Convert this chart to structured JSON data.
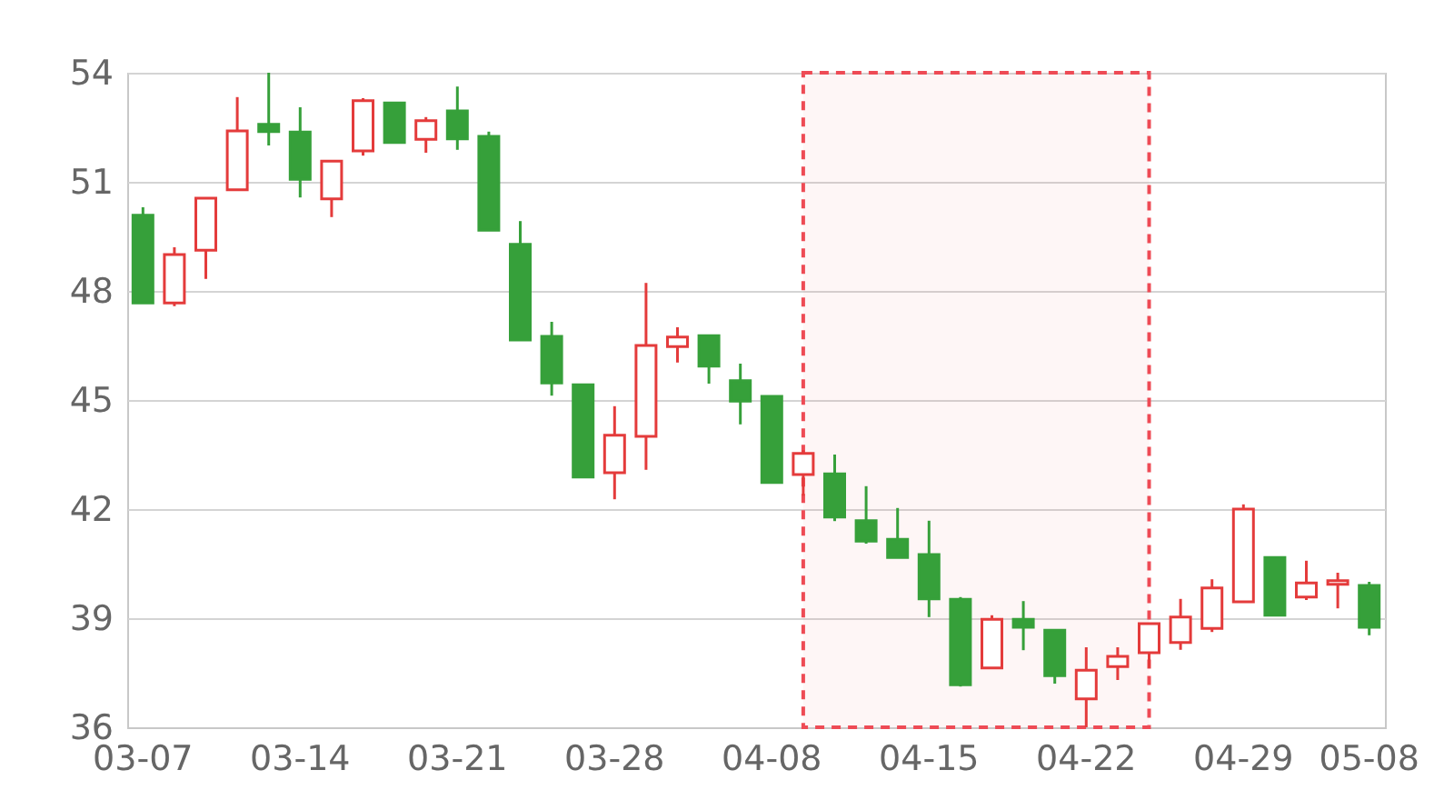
{
  "chart_data": {
    "type": "candlestick",
    "categories": [
      "03-07",
      null,
      null,
      null,
      null,
      "03-14",
      null,
      null,
      null,
      null,
      "03-21",
      null,
      null,
      null,
      null,
      "03-28",
      null,
      null,
      null,
      null,
      "04-08",
      null,
      null,
      null,
      null,
      "04-15",
      null,
      null,
      null,
      null,
      "04-22",
      null,
      null,
      null,
      null,
      "04-29",
      null,
      null,
      null,
      "05-08"
    ],
    "ohlc": [
      [
        50.08,
        50.3,
        47.67,
        47.67
      ],
      [
        47.67,
        49.2,
        47.58,
        49.0
      ],
      [
        49.12,
        50.55,
        48.33,
        50.55
      ],
      [
        50.78,
        53.33,
        50.78,
        52.4
      ],
      [
        52.58,
        54.0,
        52.0,
        52.38
      ],
      [
        52.37,
        53.05,
        50.57,
        51.07
      ],
      [
        50.53,
        51.57,
        50.03,
        51.57
      ],
      [
        51.85,
        53.3,
        51.72,
        53.23
      ],
      [
        53.17,
        53.17,
        52.05,
        52.08
      ],
      [
        52.17,
        52.78,
        51.8,
        52.68
      ],
      [
        52.95,
        53.62,
        51.88,
        52.18
      ],
      [
        52.25,
        52.38,
        49.67,
        49.67
      ],
      [
        49.28,
        49.92,
        46.65,
        46.65
      ],
      [
        46.75,
        47.15,
        45.12,
        45.47
      ],
      [
        45.42,
        45.42,
        42.88,
        42.88
      ],
      [
        43.0,
        44.83,
        42.27,
        44.03
      ],
      [
        44.0,
        48.22,
        43.08,
        46.5
      ],
      [
        46.47,
        47.0,
        46.03,
        46.73
      ],
      [
        46.77,
        46.77,
        45.45,
        45.93
      ],
      [
        45.53,
        46.0,
        44.33,
        44.97
      ],
      [
        45.1,
        45.1,
        42.73,
        42.73
      ],
      [
        42.95,
        43.62,
        42.37,
        43.53
      ],
      [
        42.97,
        43.5,
        41.67,
        41.78
      ],
      [
        41.68,
        42.63,
        41.05,
        41.12
      ],
      [
        41.17,
        42.03,
        40.67,
        40.67
      ],
      [
        40.75,
        41.68,
        39.03,
        39.53
      ],
      [
        39.52,
        39.58,
        37.12,
        37.17
      ],
      [
        37.63,
        39.08,
        37.63,
        38.97
      ],
      [
        38.97,
        39.47,
        38.12,
        38.75
      ],
      [
        38.67,
        38.67,
        37.2,
        37.42
      ],
      [
        36.78,
        38.2,
        36.0,
        37.57
      ],
      [
        37.67,
        38.2,
        37.3,
        37.95
      ],
      [
        38.05,
        38.85,
        37.63,
        38.85
      ],
      [
        38.33,
        39.53,
        38.13,
        39.03
      ],
      [
        38.72,
        40.07,
        38.62,
        39.83
      ],
      [
        39.45,
        42.13,
        39.45,
        42.0
      ],
      [
        40.67,
        40.67,
        39.08,
        39.08
      ],
      [
        39.58,
        40.58,
        39.5,
        39.97
      ],
      [
        39.93,
        40.25,
        39.27,
        40.03
      ],
      [
        39.9,
        40.0,
        38.53,
        38.75
      ]
    ],
    "colors": [
      "#36a03a",
      "#e43b3b",
      "#e43b3b",
      "#e43b3b",
      "#36a03a",
      "#36a03a",
      "#e43b3b",
      "#e43b3b",
      "#36a03a",
      "#e43b3b",
      "#36a03a",
      "#36a03a",
      "#36a03a",
      "#36a03a",
      "#36a03a",
      "#e43b3b",
      "#e43b3b",
      "#e43b3b",
      "#36a03a",
      "#36a03a",
      "#36a03a",
      "#e43b3b",
      "#36a03a",
      "#36a03a",
      "#36a03a",
      "#36a03a",
      "#36a03a",
      "#e43b3b",
      "#36a03a",
      "#36a03a",
      "#e43b3b",
      "#e43b3b",
      "#e43b3b",
      "#e43b3b",
      "#e43b3b",
      "#e43b3b",
      "#36a03a",
      "#e43b3b",
      "#e43b3b",
      "#36a03a"
    ],
    "ylim": [
      36,
      54
    ],
    "yticks": [
      36,
      39,
      42,
      45,
      48,
      51,
      54
    ],
    "grid": "y"
  }
}
